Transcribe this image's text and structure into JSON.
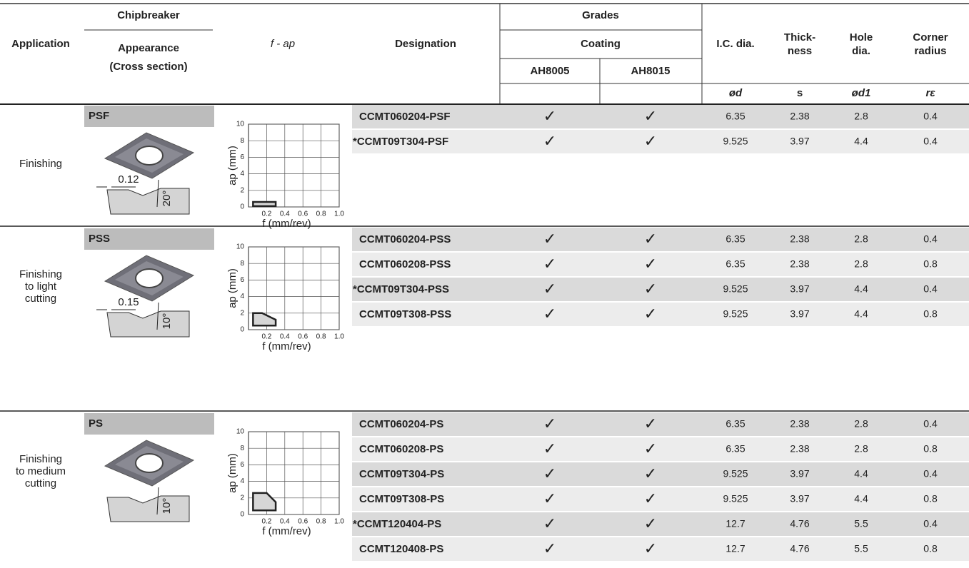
{
  "header": {
    "application": "Application",
    "chipbreaker": "Chipbreaker",
    "appearance": "Appearance",
    "cross_section": "(Cross section)",
    "f_ap": "f - ap",
    "designation": "Designation",
    "grades": "Grades",
    "coating": "Coating",
    "ah8005": "AH8005",
    "ah8015": "AH8015",
    "ic_dia": "I.C. dia.",
    "thickness": [
      "Thick-",
      "ness"
    ],
    "hole_dia": [
      "Hole",
      "dia."
    ],
    "corner_radius": [
      "Corner",
      "radius"
    ],
    "symbols": [
      "ød",
      "s",
      "ød1",
      "rε"
    ]
  },
  "sections": [
    {
      "application": [
        "Finishing"
      ],
      "chipbreaker": "PSF",
      "cross_section": {
        "dimension": "0.12",
        "angle": "20°"
      },
      "chart": {
        "ylabel": "ap (mm)",
        "xlabel": "f (mm/rev)",
        "xlim": [
          0,
          1
        ],
        "ylim": [
          0,
          10
        ],
        "xticks": [
          0.2,
          0.4,
          0.6,
          0.8,
          {
            "value": 1,
            "label": "1.0"
          }
        ],
        "yticks": [
          0,
          2,
          4,
          6,
          8,
          10
        ],
        "region": {
          "f": [
            0.05,
            0.05,
            0.3,
            0.3
          ],
          "ap": [
            0.1,
            0.6,
            0.6,
            0.1
          ]
        }
      },
      "rows": [
        [
          "CCMT060204-PSF",
          "✓",
          "✓",
          "6.35",
          "2.38",
          "2.8",
          "0.4"
        ],
        [
          "*CCMT09T304-PSF",
          "✓",
          "✓",
          "9.525",
          "3.97",
          "4.4",
          "0.4"
        ]
      ]
    },
    {
      "application": [
        "Finishing",
        "to light",
        "cutting"
      ],
      "chipbreaker": "PSS",
      "cross_section": {
        "dimension": "0.15",
        "angle": "10°"
      },
      "chart": {
        "ylabel": "ap (mm)",
        "xlabel": "f (mm/rev)",
        "xlim": [
          0,
          1
        ],
        "ylim": [
          0,
          10
        ],
        "xticks": [
          0.2,
          0.4,
          0.6,
          0.8,
          {
            "value": 1,
            "label": "1.0"
          }
        ],
        "yticks": [
          0,
          2,
          4,
          6,
          8,
          10
        ],
        "region": {
          "f": [
            0.05,
            0.05,
            0.15,
            0.3,
            0.3
          ],
          "ap": [
            0.5,
            2,
            2,
            1.2,
            0.5
          ]
        }
      },
      "rows": [
        [
          "CCMT060204-PSS",
          "✓",
          "✓",
          "6.35",
          "2.38",
          "2.8",
          "0.4"
        ],
        [
          "CCMT060208-PSS",
          "✓",
          "✓",
          "6.35",
          "2.38",
          "2.8",
          "0.8"
        ],
        [
          "*CCMT09T304-PSS",
          "✓",
          "✓",
          "9.525",
          "3.97",
          "4.4",
          "0.4"
        ],
        [
          "CCMT09T308-PSS",
          "✓",
          "✓",
          "9.525",
          "3.97",
          "4.4",
          "0.8"
        ]
      ]
    },
    {
      "application": [
        "Finishing",
        "to medium",
        "cutting"
      ],
      "chipbreaker": "PS",
      "cross_section": {
        "angle": "10°"
      },
      "chart": {
        "ylabel": "ap (mm)",
        "xlabel": "f (mm/rev)",
        "xlim": [
          0,
          1
        ],
        "ylim": [
          0,
          10
        ],
        "xticks": [
          0.2,
          0.4,
          0.6,
          0.8,
          {
            "value": 1,
            "label": "1.0"
          }
        ],
        "yticks": [
          0,
          2,
          4,
          6,
          8,
          10
        ],
        "region": {
          "f": [
            0.05,
            0.05,
            0.2,
            0.3,
            0.3
          ],
          "ap": [
            0.5,
            2.6,
            2.6,
            1.5,
            0.5
          ]
        }
      },
      "rows": [
        [
          "CCMT060204-PS",
          "✓",
          "✓",
          "6.35",
          "2.38",
          "2.8",
          "0.4"
        ],
        [
          "CCMT060208-PS",
          "✓",
          "✓",
          "6.35",
          "2.38",
          "2.8",
          "0.8"
        ],
        [
          "CCMT09T304-PS",
          "✓",
          "✓",
          "9.525",
          "3.97",
          "4.4",
          "0.4"
        ],
        [
          "CCMT09T308-PS",
          "✓",
          "✓",
          "9.525",
          "3.97",
          "4.4",
          "0.8"
        ],
        [
          "*CCMT120404-PS",
          "✓",
          "✓",
          "12.7",
          "4.76",
          "5.5",
          "0.4"
        ],
        [
          "CCMT120408-PS",
          "✓",
          "✓",
          "12.7",
          "4.76",
          "5.5",
          "0.8"
        ]
      ]
    }
  ]
}
